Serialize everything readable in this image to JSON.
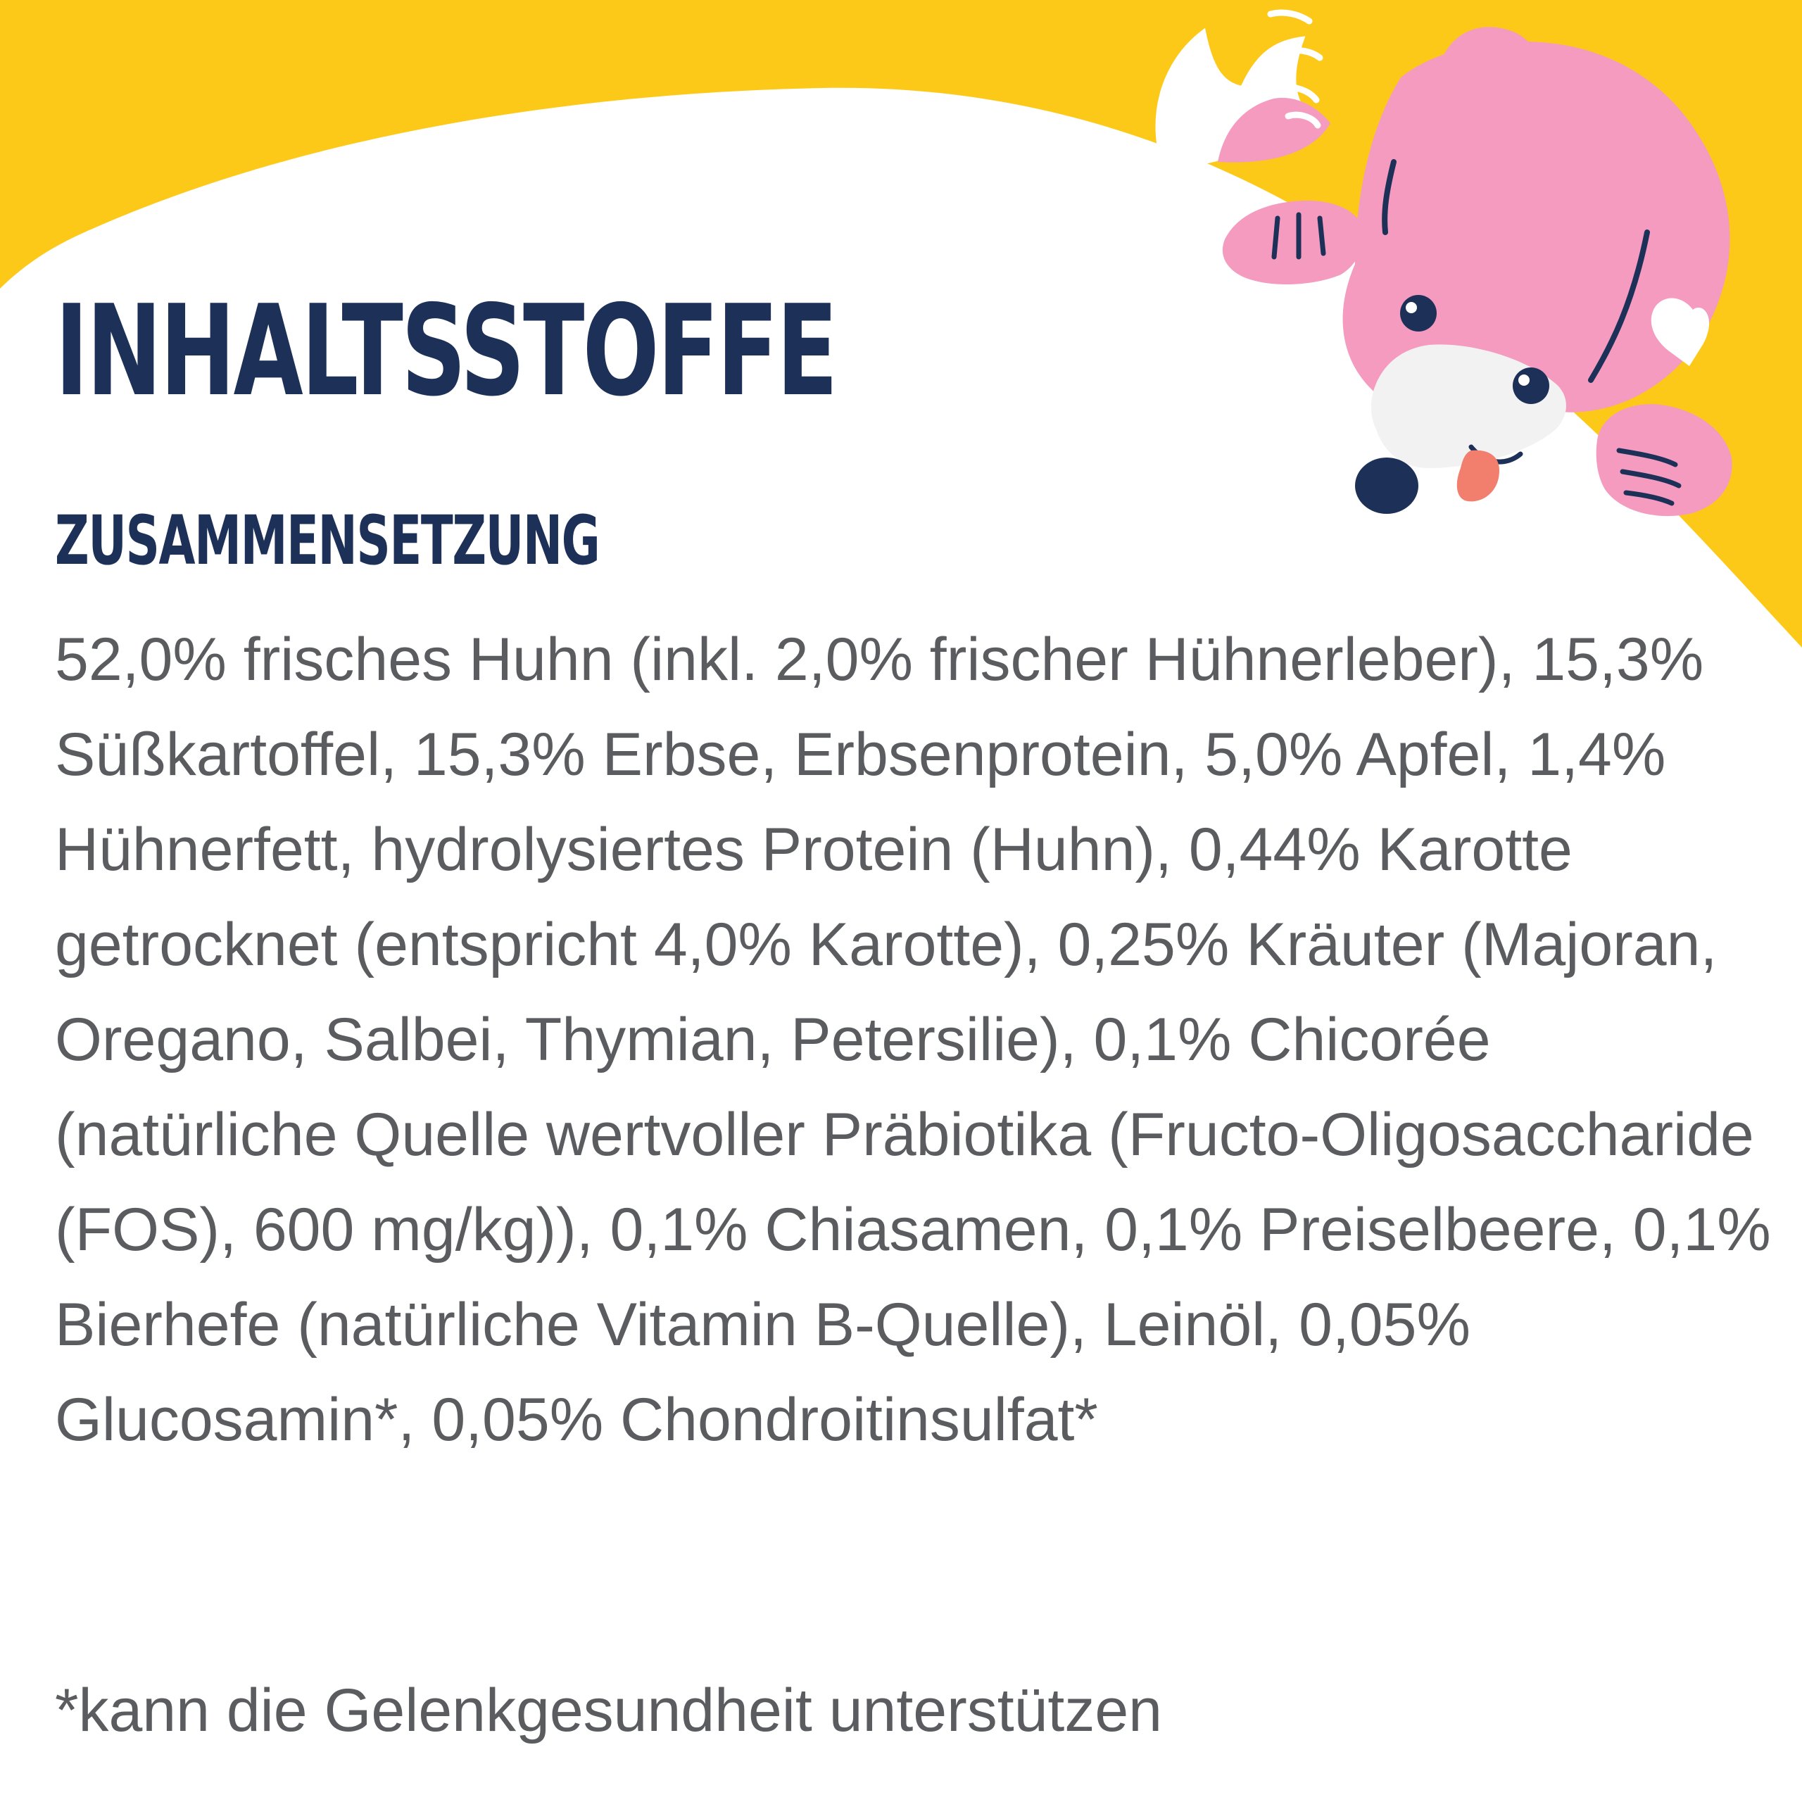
{
  "heading": {
    "title": "INHALTSSTOFFE",
    "subtitle": "ZUSAMMENSETZUNG"
  },
  "composition_text": "52,0% frisches Huhn (inkl. 2,0% frischer Hühnerleber), 15,3% Süßkartoffel, 15,3% Erbse, Erbsenprotein, 5,0% Apfel, 1,4% Hühnerfett, hydrolysiertes Protein (Huhn), 0,44% Karotte getrocknet (entspricht 4,0% Karotte), 0,25% Kräuter (Majoran, Oregano, Salbei, Thymian, Petersilie), 0,1% Chicorée (natürliche Quelle wertvoller Präbiotika (Fructo-Oligosaccharide (FOS), 600 mg/kg)), 0,1% Chiasamen, 0,1% Preiselbeere, 0,1% Bierhefe (natürliche Vitamin B-Quelle), Leinöl, 0,05% Glucosamin*, 0,05% Chondroitinsulfat*",
  "footnote": "*kann die Gelenkgesundheit unterstützen",
  "colors": {
    "accent_yellow": "#fdc918",
    "heading_navy": "#1d3158",
    "body_gray": "#5b5c5f",
    "dog_pink": "#f49bbf",
    "dog_tongue": "#f27f6d"
  },
  "icons": {
    "mascot": "pink-dog-mascot-illustration"
  }
}
